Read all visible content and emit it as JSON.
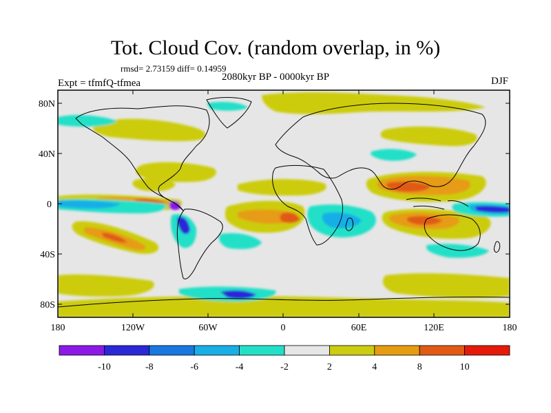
{
  "title": "Tot. Cloud Cov. (random overlap, in %)",
  "stats": "rmsd= 2.73159 diff= 0.14959",
  "period": "2080kyr BP - 0000kyr BP",
  "experiment": "Expt = tfmfQ-tfmea",
  "season": "DJF",
  "map": {
    "lat_labels": [
      "80N",
      "40N",
      "0",
      "40S",
      "80S"
    ],
    "lon_labels": [
      "180",
      "120W",
      "60W",
      "0",
      "60E",
      "120E",
      "180"
    ],
    "background_color": "#e6e6e6"
  },
  "colorbar": {
    "labels": [
      "-10",
      "-8",
      "-6",
      "-4",
      "-2",
      "2",
      "4",
      "8",
      "10"
    ],
    "colors": [
      "#8c19e6",
      "#2a28d8",
      "#1878e0",
      "#19aee6",
      "#22e0c8",
      "#e6e6e6",
      "#cccc10",
      "#e69c12",
      "#e05a14",
      "#e61a0a"
    ]
  }
}
